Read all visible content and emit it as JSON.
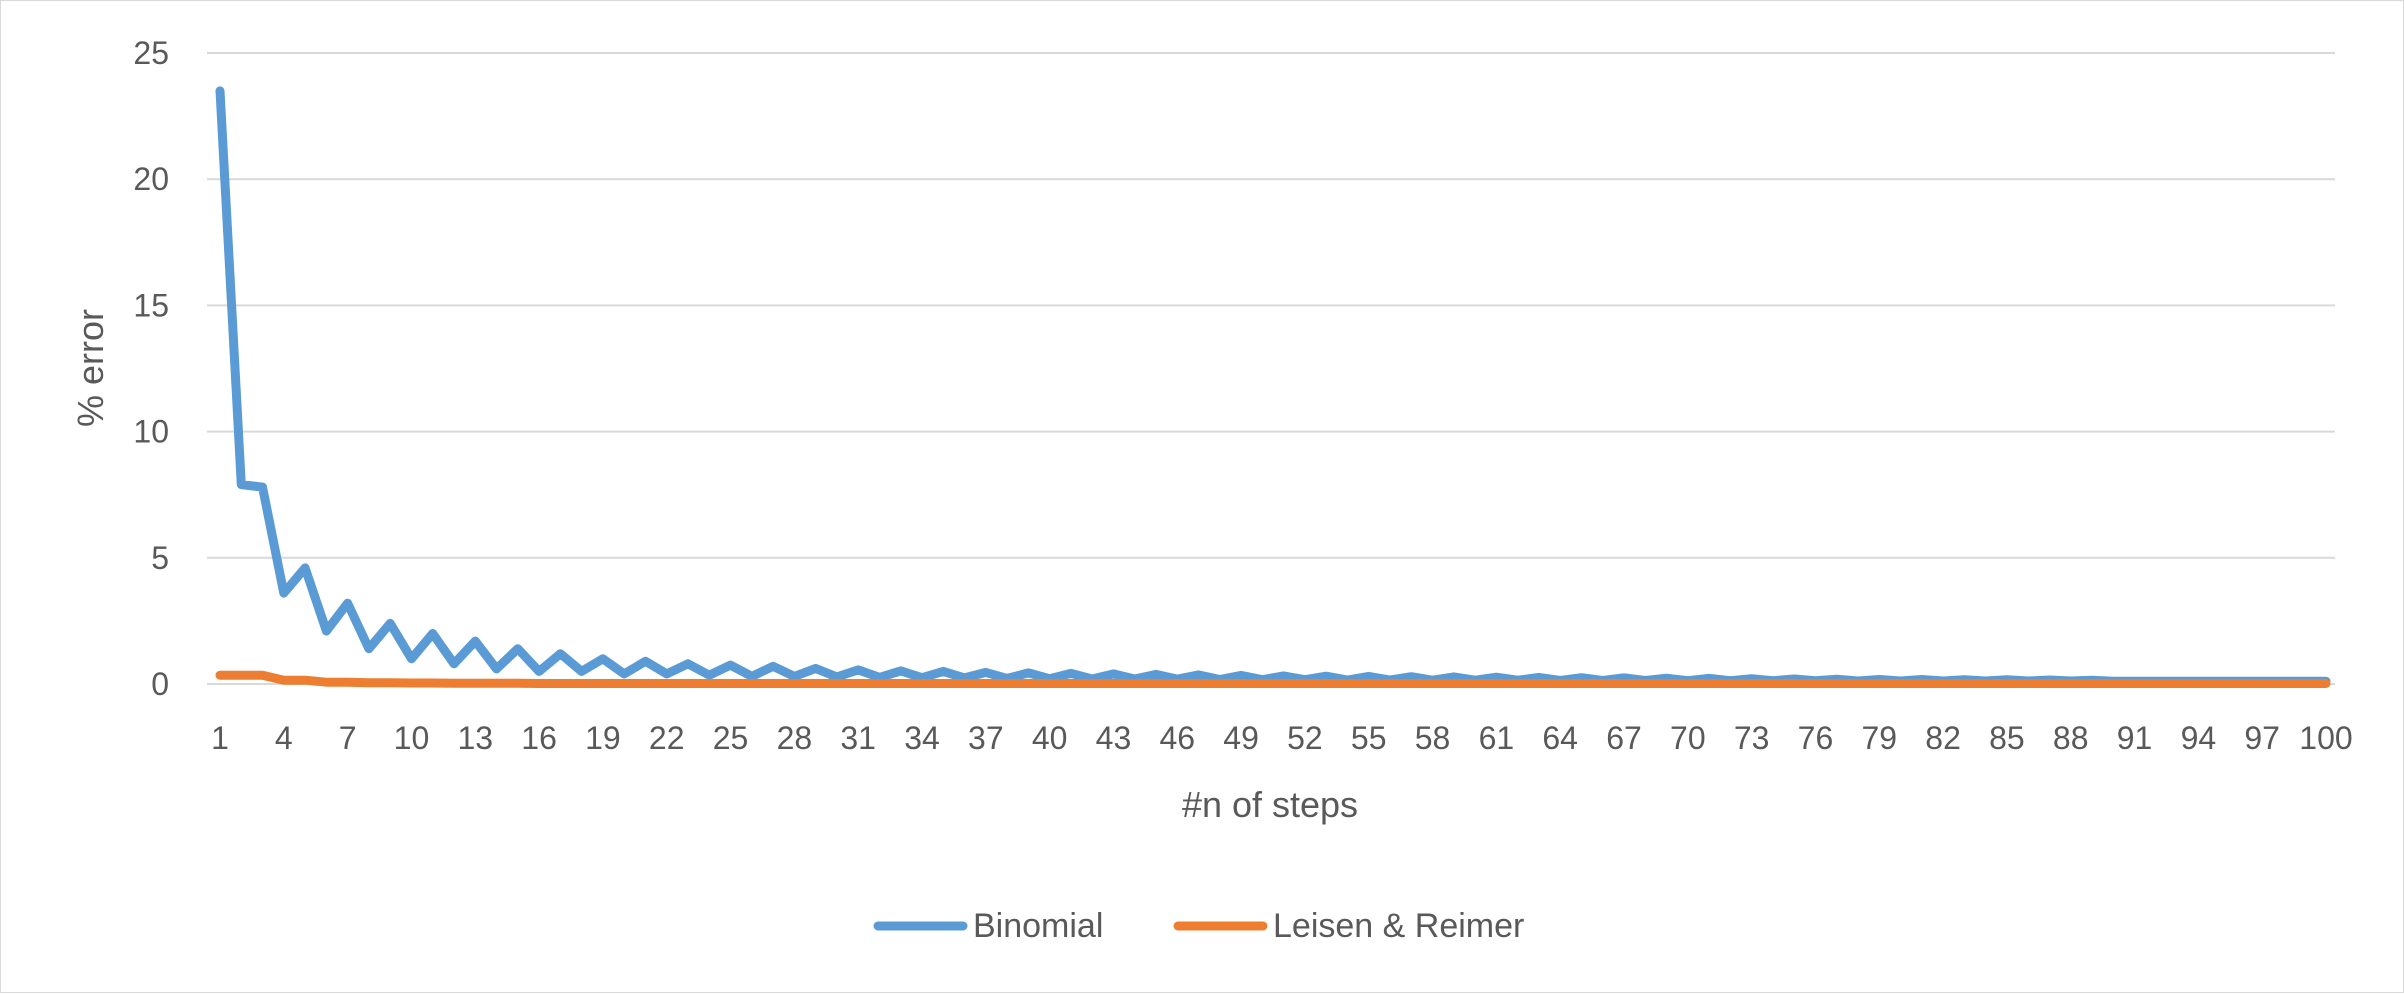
{
  "chart_data": {
    "type": "line",
    "title": "",
    "xlabel": "#n of steps",
    "ylabel": "% error",
    "ylim": [
      0,
      25
    ],
    "yticks": [
      "0",
      "5",
      "10",
      "15",
      "20",
      "25"
    ],
    "x_tick_every": 3,
    "grid": true,
    "legend_position": "bottom",
    "x": [
      1,
      2,
      3,
      4,
      5,
      6,
      7,
      8,
      9,
      10,
      11,
      12,
      13,
      14,
      15,
      16,
      17,
      18,
      19,
      20,
      21,
      22,
      23,
      24,
      25,
      26,
      27,
      28,
      29,
      30,
      31,
      32,
      33,
      34,
      35,
      36,
      37,
      38,
      39,
      40,
      41,
      42,
      43,
      44,
      45,
      46,
      47,
      48,
      49,
      50,
      51,
      52,
      53,
      54,
      55,
      56,
      57,
      58,
      59,
      60,
      61,
      62,
      63,
      64,
      65,
      66,
      67,
      68,
      69,
      70,
      71,
      72,
      73,
      74,
      75,
      76,
      77,
      78,
      79,
      80,
      81,
      82,
      83,
      84,
      85,
      86,
      87,
      88,
      89,
      90,
      91,
      92,
      93,
      94,
      95,
      96,
      97,
      98,
      99,
      100
    ],
    "series": [
      {
        "name": "Binomial",
        "color": "#5B9BD5",
        "values": [
          23.5,
          7.9,
          7.8,
          3.6,
          4.6,
          2.1,
          3.2,
          1.4,
          2.4,
          1.0,
          2.0,
          0.8,
          1.7,
          0.6,
          1.4,
          0.5,
          1.2,
          0.5,
          1.0,
          0.4,
          0.9,
          0.4,
          0.8,
          0.35,
          0.75,
          0.3,
          0.7,
          0.3,
          0.62,
          0.28,
          0.56,
          0.26,
          0.52,
          0.25,
          0.5,
          0.24,
          0.46,
          0.22,
          0.44,
          0.21,
          0.42,
          0.2,
          0.4,
          0.2,
          0.38,
          0.19,
          0.36,
          0.18,
          0.34,
          0.17,
          0.32,
          0.17,
          0.31,
          0.16,
          0.3,
          0.16,
          0.29,
          0.15,
          0.28,
          0.15,
          0.27,
          0.15,
          0.26,
          0.14,
          0.25,
          0.14,
          0.24,
          0.14,
          0.23,
          0.13,
          0.22,
          0.13,
          0.21,
          0.13,
          0.2,
          0.13,
          0.19,
          0.12,
          0.18,
          0.12,
          0.18,
          0.12,
          0.17,
          0.12,
          0.17,
          0.12,
          0.16,
          0.12,
          0.15,
          0.11,
          0.11,
          0.11,
          0.11,
          0.11,
          0.11,
          0.11,
          0.11,
          0.11,
          0.11,
          0.11
        ]
      },
      {
        "name": "Leisen & Reimer",
        "color": "#ED7D31",
        "values": [
          0.35,
          0.35,
          0.35,
          0.15,
          0.15,
          0.07,
          0.07,
          0.05,
          0.05,
          0.04,
          0.04,
          0.03,
          0.03,
          0.03,
          0.03,
          0.02,
          0.02,
          0.02,
          0.02,
          0.02,
          0.02,
          0.02,
          0.02,
          0.02,
          0.02,
          0.02,
          0.02,
          0.02,
          0.02,
          0.02,
          0.02,
          0.02,
          0.02,
          0.02,
          0.02,
          0.02,
          0.02,
          0.02,
          0.02,
          0.02,
          0.02,
          0.02,
          0.02,
          0.02,
          0.02,
          0.02,
          0.02,
          0.02,
          0.02,
          0.02,
          0.02,
          0.02,
          0.02,
          0.02,
          0.02,
          0.02,
          0.02,
          0.02,
          0.02,
          0.02,
          0.02,
          0.02,
          0.02,
          0.02,
          0.02,
          0.02,
          0.02,
          0.02,
          0.02,
          0.02,
          0.02,
          0.02,
          0.02,
          0.02,
          0.02,
          0.02,
          0.02,
          0.02,
          0.02,
          0.02,
          0.02,
          0.02,
          0.02,
          0.02,
          0.02,
          0.02,
          0.02,
          0.02,
          0.02,
          0.02,
          0.02,
          0.02,
          0.02,
          0.02,
          0.02,
          0.02,
          0.02,
          0.02,
          0.02,
          0.02
        ]
      }
    ]
  }
}
